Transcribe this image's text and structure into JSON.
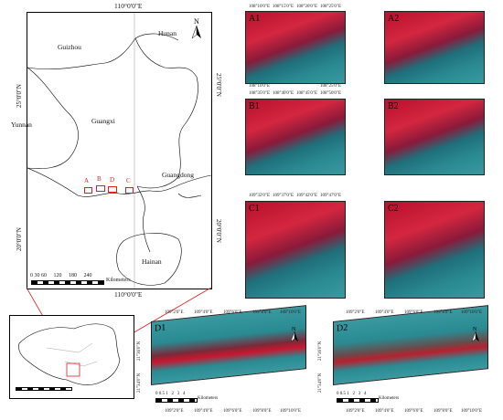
{
  "main_map": {
    "top_lon": "110°0'0\"E",
    "bottom_lon": "110°0'0\"E",
    "left_lat_top": "25°0'0\"N",
    "left_lat_bottom": "20°0'0\"N",
    "right_lat_top": "25°0'0\"N",
    "right_lat_bottom": "20°0'0\"N",
    "regions": [
      "Guizhou",
      "Hunan",
      "Yunnan",
      "Guangxi",
      "Guangdong",
      "Hainan"
    ],
    "markers": [
      "A",
      "B",
      "D",
      "C"
    ],
    "scale_numbers": "0 30 60     120     180     240",
    "scale_unit": "Kilometers"
  },
  "panels": {
    "A1": {
      "label": "A1",
      "top": [
        "108°10'0\"E",
        "108°15'0\"E",
        "108°20'0\"E",
        "108°25'0\"E"
      ],
      "bottom": [
        "108°10'0\"E",
        "108°15'0\"E",
        "108°20'0\"E",
        "108°25'0\"E"
      ]
    },
    "A2": {
      "label": "A2"
    },
    "B1": {
      "label": "B1",
      "top": [
        "108°35'0\"E",
        "108°40'0\"E",
        "108°45'0\"E",
        "108°50'0\"E"
      ]
    },
    "B2": {
      "label": "B2"
    },
    "C1": {
      "label": "C1",
      "top": [
        "109°32'0\"E",
        "109°37'0\"E",
        "109°42'0\"E",
        "109°47'0\"E"
      ]
    },
    "C2": {
      "label": "C2"
    },
    "D1": {
      "label": "D1"
    },
    "D2": {
      "label": "D2"
    }
  },
  "d_panels": {
    "top": [
      "109°2'0\"E",
      "109°4'0\"E",
      "109°6'0\"E",
      "109°8'0\"E",
      "109°10'0\"E"
    ],
    "bottom": [
      "109°2'0\"E",
      "109°4'0\"E",
      "109°6'0\"E",
      "109°8'0\"E",
      "109°10'0\"E"
    ],
    "left_lat": [
      "21°36'0\"N",
      "21°34'0\"N"
    ],
    "scale_numbers": "0 0.5 1   2   3   4",
    "scale_unit": "Kilometers"
  },
  "colors": {
    "vegetation": "#c8162e",
    "water": "#2a8a92",
    "marker_red": "#e0201c"
  }
}
